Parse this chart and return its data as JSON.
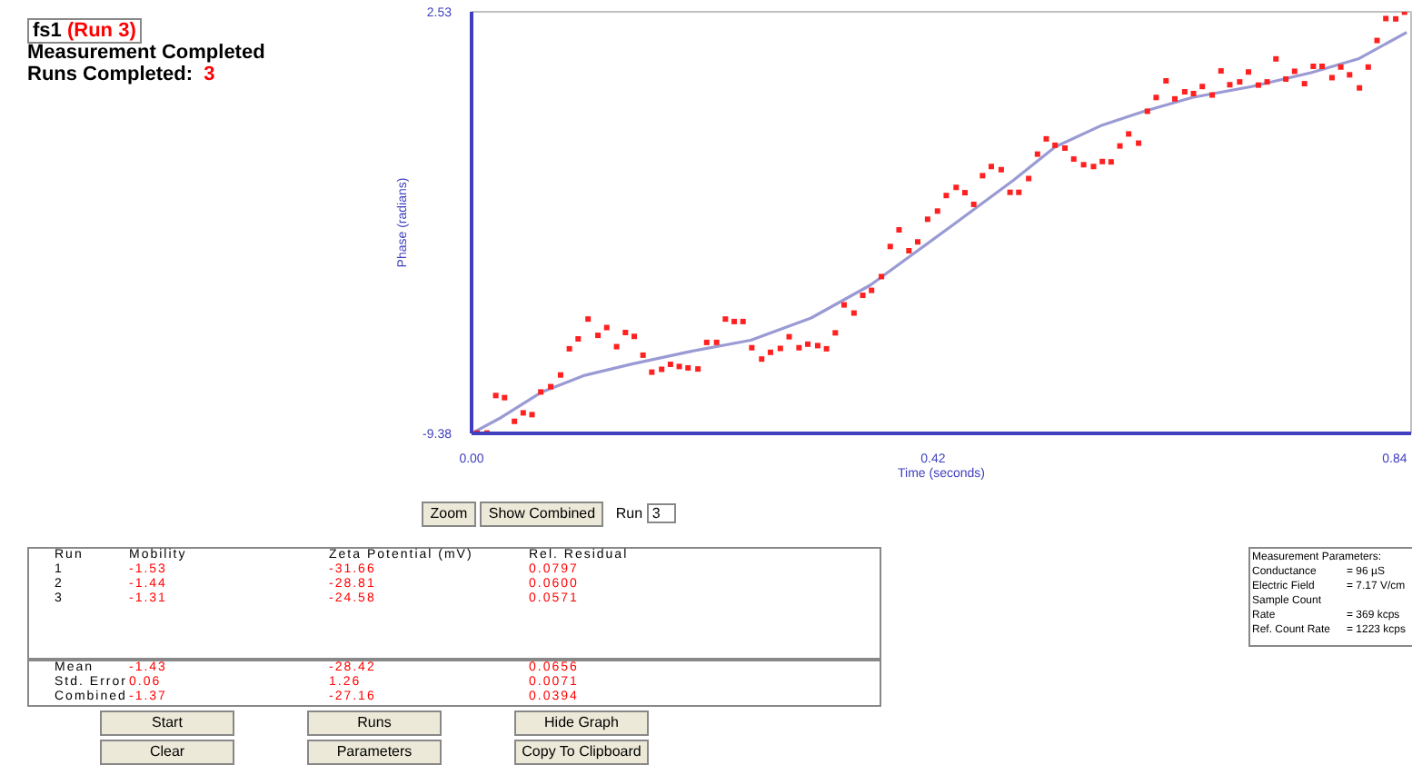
{
  "chart_data": {
    "type": "scatter",
    "title": "fs1",
    "xlabel": "Time (seconds)",
    "ylabel": "Phase (radians)",
    "xlim": [
      0,
      0.855
    ],
    "ylim": [
      -9.38,
      2.53
    ],
    "xticks": [
      {
        "value": 0,
        "label": "0.00"
      },
      0.42,
      0.84
    ],
    "yticks": [
      {
        "value": -9.38,
        "label": "-9.38"
      },
      2.53
    ],
    "grid": false,
    "series": [
      {
        "marker": "square",
        "color": "#ff2020",
        "x": [
          0.005,
          0.014,
          0.022,
          0.03,
          0.039,
          0.047,
          0.055,
          0.063,
          0.072,
          0.081,
          0.089,
          0.097,
          0.106,
          0.115,
          0.123,
          0.132,
          0.14,
          0.148,
          0.156,
          0.164,
          0.173,
          0.181,
          0.189,
          0.197,
          0.206,
          0.214,
          0.223,
          0.231,
          0.239,
          0.247,
          0.255,
          0.264,
          0.272,
          0.281,
          0.289,
          0.298,
          0.306,
          0.315,
          0.323,
          0.331,
          0.339,
          0.348,
          0.356,
          0.364,
          0.373,
          0.381,
          0.389,
          0.398,
          0.406,
          0.415,
          0.424,
          0.432,
          0.441,
          0.449,
          0.457,
          0.465,
          0.473,
          0.482,
          0.49,
          0.498,
          0.507,
          0.515,
          0.523,
          0.531,
          0.54,
          0.548,
          0.557,
          0.566,
          0.574,
          0.582,
          0.59,
          0.598,
          0.607,
          0.615,
          0.623,
          0.632,
          0.64,
          0.649,
          0.657,
          0.665,
          0.674,
          0.682,
          0.69,
          0.699,
          0.707,
          0.716,
          0.724,
          0.732,
          0.741,
          0.749,
          0.758,
          0.766,
          0.774,
          0.783,
          0.791,
          0.799,
          0.808,
          0.816,
          0.824,
          0.832,
          0.841,
          0.849
        ],
        "values": [
          -9.37,
          -9.37,
          -8.31,
          -8.37,
          -9.04,
          -8.8,
          -8.85,
          -8.21,
          -8.06,
          -7.73,
          -6.99,
          -6.71,
          -6.15,
          -6.61,
          -6.39,
          -6.93,
          -6.53,
          -6.64,
          -7.17,
          -7.65,
          -7.57,
          -7.43,
          -7.49,
          -7.53,
          -7.56,
          -6.81,
          -6.81,
          -6.15,
          -6.22,
          -6.22,
          -6.96,
          -7.28,
          -7.09,
          -6.98,
          -6.65,
          -6.96,
          -6.86,
          -6.9,
          -6.99,
          -6.54,
          -5.75,
          -5.98,
          -5.48,
          -5.34,
          -4.95,
          -4.1,
          -3.63,
          -4.22,
          -3.97,
          -3.33,
          -3.1,
          -2.66,
          -2.43,
          -2.58,
          -2.91,
          -2.1,
          -1.84,
          -1.93,
          -2.57,
          -2.57,
          -2.18,
          -1.49,
          -1.06,
          -1.24,
          -1.32,
          -1.63,
          -1.79,
          -1.84,
          -1.7,
          -1.71,
          -1.26,
          -0.92,
          -1.18,
          -0.28,
          0.11,
          0.58,
          0.07,
          0.27,
          0.22,
          0.42,
          0.18,
          0.86,
          0.47,
          0.55,
          0.83,
          0.46,
          0.55,
          1.2,
          0.63,
          0.85,
          0.5,
          0.99,
          0.99,
          0.67,
          0.97,
          0.75,
          0.38,
          0.97,
          1.72,
          2.34,
          2.33,
          2.52
        ]
      },
      {
        "type": "line",
        "color": "#9a9ad4",
        "x": [
          0.0,
          0.027,
          0.064,
          0.103,
          0.146,
          0.2,
          0.254,
          0.309,
          0.363,
          0.401,
          0.439,
          0.493,
          0.531,
          0.574,
          0.612,
          0.656,
          0.71,
          0.764,
          0.807,
          0.851
        ],
        "values": [
          -9.38,
          -8.93,
          -8.21,
          -7.74,
          -7.42,
          -7.06,
          -6.75,
          -6.12,
          -5.19,
          -4.33,
          -3.47,
          -2.23,
          -1.29,
          -0.67,
          -0.28,
          0.11,
          0.42,
          0.81,
          1.2,
          1.95
        ]
      }
    ],
    "annotations": [
      "(Run 3)",
      "Measurement Completed",
      "Runs Completed:",
      "3",
      "Zoom",
      "Show Combined",
      "Run",
      "3",
      "Run",
      "Mobility",
      "Zeta Potential (mV)",
      "Rel. Residual",
      "1",
      "-1.53",
      "-31.66",
      "0.0797",
      "2",
      "-1.44",
      "-28.81",
      "0.0600",
      "3",
      "-1.31",
      "-24.58",
      "0.0571",
      "Mean",
      "-1.43",
      "-28.42",
      "0.0656",
      "Std. Error",
      "0.06",
      "1.26",
      "0.0071",
      "Combined",
      "-1.37",
      "-27.16",
      "0.0394",
      "Measurement Parameters:",
      "Conductance",
      "= 96 µS",
      "Electric Field",
      "= 7.17 V/cm",
      "Sample Count Rate",
      "= 369 kcps",
      "Ref. Count Rate",
      "= 1223 kcps",
      "Start",
      "Runs",
      "Hide Graph",
      "Clear",
      "Parameters",
      "Copy To Clipboard"
    ]
  }
}
